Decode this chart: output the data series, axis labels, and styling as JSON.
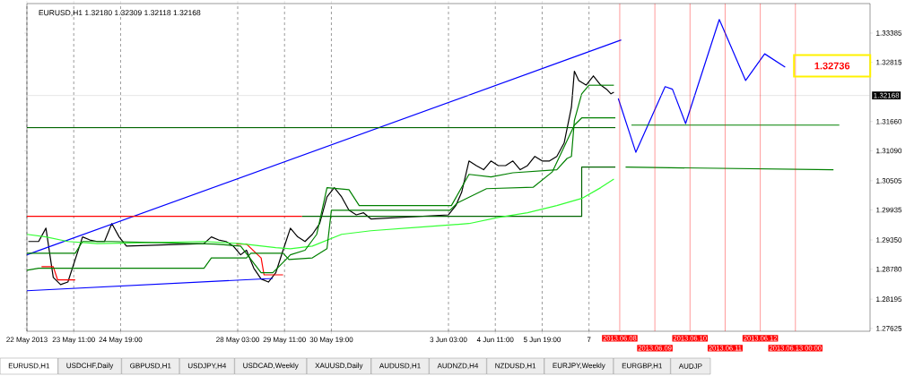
{
  "chart_data": {
    "type": "line",
    "title": "EURUSD,H1  1.32180 1.32309 1.32118 1.32168",
    "xlim": [
      "2013-05-22T03:00",
      "2013-06-15T03:00"
    ],
    "ylim": [
      1.2757,
      1.3396
    ],
    "xticks": [
      {
        "value": "2013-05-22T03:00",
        "label": "22 May 2013"
      },
      {
        "value": "2013-05-23T11:00",
        "label": "23 May 11:00"
      },
      {
        "value": "2013-05-24T19:00",
        "label": "24 May 19:00"
      },
      {
        "value": "2013-05-28T03:00",
        "label": "28 May 03:00"
      },
      {
        "value": "2013-05-29T11:00",
        "label": "29 May 11:00"
      },
      {
        "value": "2013-05-30T19:00",
        "label": "30 May 19:00"
      },
      {
        "value": "2013-06-03T03:00",
        "label": "3 Jun 03:00"
      },
      {
        "value": "2013-06-04T11:00",
        "label": "4 Jun 11:00"
      },
      {
        "value": "2013-06-05T19:00",
        "label": "5 Jun 19:00"
      },
      {
        "value": "2013-06-07T03:00",
        "label": "7"
      }
    ],
    "yticks": [
      1.27625,
      1.28195,
      {
        "value": 1.2878,
        "label": "1.28780"
      },
      {
        "value": 1.2935,
        "label": "1.29350"
      },
      1.29935,
      1.30505,
      {
        "value": 1.3109,
        "label": "1.31090"
      },
      {
        "value": 1.3166,
        "label": "1.31660"
      },
      1.32815,
      1.33385
    ],
    "grid": "x",
    "series": [
      {
        "color": "#000000",
        "x": [
          "2013-05-22T04:00",
          "2013-05-22T11:00",
          "2013-05-22T16:00",
          "2013-05-22T21:00",
          "2013-05-23T02:00",
          "2013-05-23T07:00",
          "2013-05-23T12:00",
          "2013-05-23T17:00",
          "2013-05-23T22:00",
          "2013-05-24T03:00",
          "2013-05-24T08:00",
          "2013-05-24T13:00",
          "2013-05-24T18:00",
          "2013-05-24T23:00",
          "2013-05-27T04:00",
          "2013-05-27T09:00",
          "2013-05-27T14:00",
          "2013-05-27T19:00",
          "2013-05-28T00:00",
          "2013-05-28T05:00",
          "2013-05-28T09:00",
          "2013-05-28T14:00",
          "2013-05-28T19:00",
          "2013-05-29T00:00",
          "2013-05-29T05:00",
          "2013-05-29T10:00",
          "2013-05-29T15:00",
          "2013-05-29T20:00",
          "2013-05-30T01:00",
          "2013-05-30T06:00",
          "2013-05-30T11:00",
          "2013-05-30T16:00",
          "2013-05-30T21:00",
          "2013-05-31T02:00",
          "2013-05-31T07:00",
          "2013-05-31T12:00",
          "2013-05-31T17:00",
          "2013-05-31T22:00",
          "2013-06-03T03:00",
          "2013-06-03T08:00",
          "2013-06-03T12:00",
          "2013-06-03T17:00",
          "2013-06-03T22:00",
          "2013-06-04T03:00",
          "2013-06-04T08:00",
          "2013-06-04T13:00",
          "2013-06-04T18:00",
          "2013-06-04T23:00",
          "2013-06-05T04:00",
          "2013-06-05T09:00",
          "2013-06-05T14:00",
          "2013-06-05T19:00",
          "2013-06-06T00:00",
          "2013-06-06T05:00",
          "2013-06-06T10:00",
          "2013-06-06T15:00",
          "2013-06-06T17:00",
          "2013-06-06T20:00",
          "2013-06-07T01:00",
          "2013-06-07T06:00",
          "2013-06-07T11:00",
          "2013-06-07T15:00",
          "2013-06-07T18:00",
          "2013-06-07T20:00"
        ],
        "values": [
          1.2932,
          1.2932,
          1.2958,
          1.2862,
          1.2848,
          1.2853,
          1.2897,
          1.2941,
          1.2935,
          1.2932,
          1.2932,
          1.2967,
          1.2941,
          1.2923,
          1.2928,
          1.2941,
          1.2935,
          1.2932,
          1.2923,
          1.2906,
          1.2915,
          1.288,
          1.2859,
          1.2853,
          1.2871,
          1.2915,
          1.2958,
          1.2941,
          1.2932,
          1.2946,
          1.2967,
          1.3019,
          1.3037,
          1.3019,
          1.2993,
          1.2984,
          1.2988,
          1.2976,
          1.2984,
          1.3002,
          1.3028,
          1.3089,
          1.308,
          1.3072,
          1.3089,
          1.308,
          1.308,
          1.3089,
          1.3072,
          1.308,
          1.3098,
          1.3089,
          1.3089,
          1.3098,
          1.3124,
          1.3194,
          1.3264,
          1.3246,
          1.3237,
          1.3255,
          1.3237,
          1.3229,
          1.322,
          1.3223
        ]
      },
      {
        "color": "#0000ff",
        "x": [
          "2013-05-22T03:00",
          "2013-06-08T01:00"
        ],
        "values": [
          1.2906,
          1.3325
        ]
      },
      {
        "color": "#0000ff",
        "x": [
          "2013-05-22T03:00",
          "2013-05-29T03:00"
        ],
        "values": [
          1.2836,
          1.286
        ]
      },
      {
        "color": "#ff0000",
        "x": [
          "2013-05-22T03:00",
          "2013-05-29T23:00"
        ],
        "values": [
          1.2981,
          1.2981
        ]
      },
      {
        "color": "#ff0000",
        "x": [
          "2013-05-22T13:00",
          "2013-05-22T21:00",
          "2013-05-23T00:00",
          "2013-05-23T12:00",
          "2013-05-24T15:00",
          "2013-05-28T02:00",
          "2013-05-28T09:00",
          "2013-05-28T19:00",
          "2013-05-28T21:00",
          "2013-05-29T10:00"
        ],
        "values": [
          1.2883,
          1.2883,
          1.2857,
          1.2857,
          null,
          1.2927,
          1.2927,
          1.29,
          1.2867,
          1.2867
        ]
      },
      {
        "color": "#006400",
        "x": [
          "2013-05-29T23:00",
          "2013-06-06T22:00",
          "2013-06-06T22:00",
          "2013-06-07T21:00"
        ],
        "values": [
          1.2981,
          1.2981,
          1.3077,
          1.3077
        ]
      },
      {
        "color": "#006400",
        "x": [
          "2013-05-22T03:00",
          "2013-06-07T21:00"
        ],
        "values": [
          1.3154,
          1.3154
        ]
      },
      {
        "color": "#33ff33",
        "x": [
          "2013-05-22T03:00",
          "2013-05-22T16:00",
          "2013-05-23T07:00",
          "2013-05-24T03:00",
          "2013-05-27T04:00",
          "2013-05-28T05:00",
          "2013-05-29T05:00",
          "2013-05-29T15:00",
          "2013-05-30T06:00",
          "2013-05-31T02:00",
          "2013-05-31T22:00",
          "2013-06-03T17:00",
          "2013-06-04T13:00",
          "2013-06-05T09:00",
          "2013-06-06T05:00",
          "2013-06-06T22:00",
          "2013-06-07T11:00",
          "2013-06-07T20:00"
        ],
        "values": [
          1.2946,
          1.2941,
          1.2932,
          1.2928,
          1.2932,
          1.2928,
          1.292,
          1.2918,
          1.2923,
          1.2946,
          1.2953,
          1.2967,
          1.2979,
          1.2988,
          1.3002,
          1.3016,
          1.3037,
          1.3054
        ]
      },
      {
        "color": "#008000",
        "x": [
          "2013-05-22T03:00",
          "2013-05-22T11:00",
          "2013-05-27T04:00",
          "2013-05-27T09:00",
          "2013-05-28T09:00",
          "2013-05-28T12:00",
          "2013-05-29T10:00",
          "2013-05-29T14:00",
          "2013-05-30T06:00",
          "2013-05-30T16:00",
          "2013-05-30T19:00",
          "2013-06-03T04:00",
          "2013-06-03T09:00",
          "2013-06-04T05:00",
          "2013-06-05T13:00",
          "2013-06-06T02:00",
          "2013-06-06T17:00",
          "2013-06-06T22:00",
          "2013-06-07T21:00"
        ],
        "values": [
          1.2876,
          1.288,
          1.288,
          1.29,
          1.29,
          1.2909,
          1.2909,
          1.2897,
          1.29,
          1.2918,
          1.2993,
          1.2993,
          1.3007,
          1.3035,
          1.3038,
          1.3068,
          1.3159,
          1.3173,
          1.3173
        ]
      },
      {
        "color": "#008000",
        "x": [
          "2013-05-22T03:00",
          "2013-05-23T12:00",
          "2013-05-23T17:00",
          "2013-05-24T13:00",
          "2013-05-27T11:00",
          "2013-05-28T05:00",
          "2013-05-28T19:00",
          "2013-05-29T03:00",
          "2013-05-29T12:00",
          "2013-05-29T15:00",
          "2013-05-30T01:00",
          "2013-05-30T09:00",
          "2013-05-30T16:00",
          "2013-05-31T07:00",
          "2013-05-31T14:00",
          "2013-06-03T05:00",
          "2013-06-03T17:00",
          "2013-06-04T08:00",
          "2013-06-04T23:00",
          "2013-06-06T05:00",
          "2013-06-06T12:00",
          "2013-06-06T15:00",
          "2013-06-06T17:00",
          "2013-06-06T22:00",
          "2013-06-07T03:00",
          "2013-06-07T20:00"
        ],
        "values": [
          1.2909,
          1.2909,
          1.2932,
          1.2932,
          1.2927,
          1.2923,
          1.2871,
          1.2871,
          1.2897,
          1.2906,
          1.2915,
          1.2946,
          1.3037,
          1.3033,
          1.3002,
          1.3002,
          1.3063,
          1.3058,
          1.3066,
          1.3072,
          1.3094,
          1.3098,
          1.3168,
          1.322,
          1.3237,
          1.3237
        ]
      },
      {
        "color": "#0000ff",
        "x": [
          "2013-06-07T23:00",
          "2013-06-08T11:00",
          "2013-06-09T07:00",
          "2013-06-09T12:00",
          "2013-06-09T21:00",
          "2013-06-10T20:00",
          "2013-06-11T14:00",
          "2013-06-12T03:00",
          "2013-06-12T17:00"
        ],
        "values": [
          1.3211,
          1.3106,
          1.3234,
          1.3229,
          1.3162,
          1.3365,
          1.3246,
          1.3298,
          1.3272
        ]
      },
      {
        "color": "#008000",
        "x": [
          "2013-06-14T06:00",
          "2013-06-08T08:00"
        ],
        "values": [
          1.3159,
          1.3159
        ]
      },
      {
        "color": "#008000",
        "x": [
          "2013-06-14T02:00",
          "2013-06-08T04:00"
        ],
        "values": [
          1.3072,
          1.3077
        ]
      }
    ],
    "ref_lines": [
      {
        "axis": "y",
        "value": 1.32168,
        "label": "1.32168",
        "color": "#c0c0c0"
      },
      {
        "axis": "x",
        "value": "2013-06-08",
        "label": "2013.06.08",
        "color": "#ff0000"
      },
      {
        "axis": "x",
        "value": "2013-06-09",
        "label": "2013.06.09",
        "color": "#ff0000"
      },
      {
        "axis": "x",
        "value": "2013-06-10",
        "label": "2013.06.10",
        "color": "#ff0000"
      },
      {
        "axis": "x",
        "value": "2013-06-11",
        "label": "2013.06.11",
        "color": "#ff0000"
      },
      {
        "axis": "x",
        "value": "2013-06-12",
        "label": "2013.06.12",
        "color": "#ff0000"
      },
      {
        "axis": "x",
        "value": "2013-06-13T00:00",
        "label": "2013.06.13 00:00",
        "color": "#ff0000"
      }
    ],
    "annotations": [
      "1.32736",
      "EURUSD,H1",
      "USDCHF,Daily",
      "GBPUSD,H1",
      "USDJPY,H4",
      "USDCAD,Weekly",
      "XAUUSD,Daily",
      "AUDUSD,H1",
      "AUDNZD,H4",
      "NZDUSD,H1",
      "EURJPY,Weekly",
      "EURGBP,H1",
      "AUDJP"
    ]
  }
}
